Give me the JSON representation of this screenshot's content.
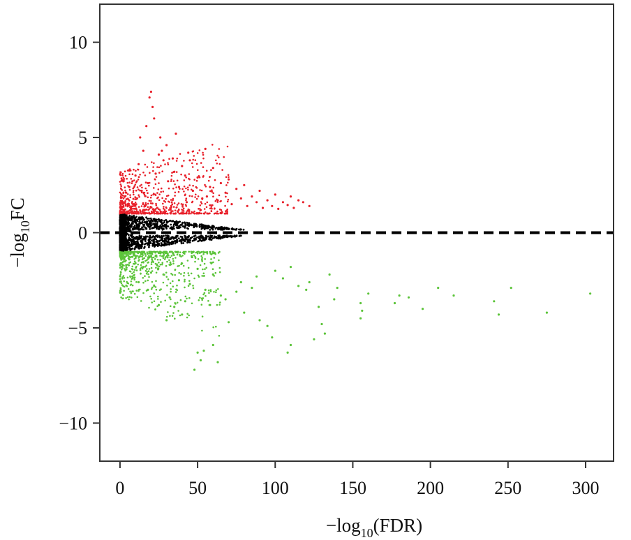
{
  "chart_data": {
    "type": "scatter",
    "xlabel": {
      "prefix": "−log",
      "subscript": "10",
      "suffix": "(FDR)"
    },
    "ylabel": {
      "prefix": "−log",
      "subscript": "10",
      "suffix": "FC"
    },
    "xlim": [
      -13,
      318
    ],
    "ylim": [
      -12,
      12
    ],
    "x_ticks": [
      0,
      50,
      100,
      150,
      200,
      250,
      300
    ],
    "y_ticks": [
      10,
      5,
      0,
      -5,
      -10
    ],
    "x_tick_labels": [
      "0",
      "50",
      "100",
      "150",
      "200",
      "250",
      "300"
    ],
    "y_tick_labels": [
      "10",
      "5",
      "0",
      "−5",
      "−10"
    ],
    "reference_line": {
      "y": 0,
      "style": "dashed",
      "color": "#000000"
    },
    "grid": false,
    "colors": {
      "up": "#e8202a",
      "down": "#5cc43a",
      "not_significant": "#000000"
    },
    "series": [
      {
        "key": "up",
        "color": "#e8202a",
        "points": [
          [
            20,
            7.4
          ],
          [
            19,
            7.1
          ],
          [
            21,
            6.6
          ],
          [
            22,
            6.0
          ],
          [
            17,
            5.6
          ],
          [
            26,
            5.0
          ],
          [
            36,
            5.2
          ],
          [
            55,
            4.4
          ],
          [
            30,
            4.6
          ],
          [
            25,
            4.1
          ],
          [
            45,
            3.8
          ],
          [
            40,
            3.5
          ],
          [
            60,
            3.4
          ],
          [
            35,
            3.2
          ],
          [
            70,
            2.8
          ],
          [
            80,
            2.5
          ],
          [
            90,
            2.2
          ],
          [
            100,
            2.0
          ],
          [
            105,
            1.6
          ],
          [
            110,
            1.9
          ],
          [
            118,
            1.6
          ],
          [
            95,
            1.7
          ],
          [
            85,
            1.9
          ],
          [
            75,
            2.3
          ],
          [
            65,
            2.6
          ],
          [
            50,
            2.9
          ],
          [
            42,
            3.0
          ],
          [
            28,
            3.8
          ],
          [
            15,
            4.3
          ],
          [
            12,
            3.6
          ],
          [
            10,
            3.0
          ],
          [
            8,
            2.7
          ],
          [
            6,
            2.4
          ],
          [
            4,
            2.1
          ],
          [
            3,
            1.9
          ],
          [
            2,
            1.6
          ],
          [
            5,
            1.4
          ],
          [
            7,
            1.3
          ],
          [
            9,
            1.5
          ],
          [
            11,
            1.8
          ],
          [
            14,
            2.2
          ],
          [
            18,
            2.6
          ],
          [
            23,
            3.1
          ],
          [
            31,
            2.7
          ],
          [
            38,
            2.4
          ],
          [
            47,
            2.2
          ],
          [
            56,
            1.9
          ],
          [
            63,
            1.7
          ],
          [
            72,
            1.5
          ],
          [
            82,
            1.4
          ],
          [
            92,
            1.3
          ],
          [
            102,
            1.25
          ],
          [
            112,
            1.3
          ],
          [
            122,
            1.4
          ],
          [
            16,
            1.2
          ],
          [
            24,
            1.3
          ],
          [
            33,
            1.4
          ],
          [
            43,
            1.6
          ],
          [
            53,
            1.8
          ],
          [
            13,
            5.0
          ],
          [
            27,
            4.3
          ],
          [
            34,
            3.9
          ],
          [
            44,
            4.2
          ],
          [
            58,
            2.4
          ],
          [
            68,
            2.1
          ],
          [
            78,
            1.8
          ],
          [
            88,
            1.6
          ],
          [
            98,
            1.4
          ],
          [
            108,
            1.45
          ],
          [
            115,
            1.7
          ]
        ]
      },
      {
        "key": "down",
        "color": "#5cc43a",
        "points": [
          [
            48,
            -7.2
          ],
          [
            52,
            -6.7
          ],
          [
            50,
            -6.3
          ],
          [
            63,
            -6.8
          ],
          [
            60,
            -5.9
          ],
          [
            54,
            -6.2
          ],
          [
            108,
            -6.3
          ],
          [
            110,
            -5.9
          ],
          [
            98,
            -5.5
          ],
          [
            125,
            -5.6
          ],
          [
            132,
            -5.3
          ],
          [
            130,
            -4.8
          ],
          [
            95,
            -4.9
          ],
          [
            90,
            -4.6
          ],
          [
            80,
            -4.2
          ],
          [
            70,
            -4.7
          ],
          [
            30,
            -4.6
          ],
          [
            40,
            -4.3
          ],
          [
            35,
            -3.9
          ],
          [
            25,
            -3.8
          ],
          [
            155,
            -4.5
          ],
          [
            156,
            -4.1
          ],
          [
            155,
            -3.7
          ],
          [
            160,
            -3.2
          ],
          [
            177,
            -3.7
          ],
          [
            180,
            -3.3
          ],
          [
            186,
            -3.4
          ],
          [
            195,
            -4.0
          ],
          [
            205,
            -2.9
          ],
          [
            215,
            -3.3
          ],
          [
            241,
            -3.6
          ],
          [
            244,
            -4.3
          ],
          [
            252,
            -2.9
          ],
          [
            275,
            -4.2
          ],
          [
            303,
            -3.2
          ],
          [
            138,
            -3.5
          ],
          [
            140,
            -2.9
          ],
          [
            135,
            -2.2
          ],
          [
            128,
            -3.9
          ],
          [
            120,
            -3.0
          ],
          [
            115,
            -2.8
          ],
          [
            105,
            -2.4
          ],
          [
            85,
            -2.9
          ],
          [
            75,
            -3.1
          ],
          [
            65,
            -3.3
          ],
          [
            55,
            -3.0
          ],
          [
            45,
            -2.7
          ],
          [
            38,
            -2.5
          ],
          [
            28,
            -2.2
          ],
          [
            20,
            -2.1
          ],
          [
            15,
            -1.8
          ],
          [
            10,
            -1.6
          ],
          [
            6,
            -1.4
          ],
          [
            4,
            -1.7
          ],
          [
            3,
            -1.3
          ],
          [
            8,
            -2.3
          ],
          [
            12,
            -2.6
          ],
          [
            18,
            -3.0
          ],
          [
            22,
            -2.8
          ],
          [
            32,
            -3.4
          ],
          [
            42,
            -3.6
          ],
          [
            58,
            -3.8
          ],
          [
            68,
            -3.5
          ],
          [
            78,
            -2.6
          ],
          [
            88,
            -2.3
          ],
          [
            100,
            -2.0
          ],
          [
            110,
            -1.8
          ],
          [
            122,
            -2.6
          ],
          [
            60,
            -2.2
          ],
          [
            50,
            -1.9
          ]
        ]
      }
    ]
  }
}
